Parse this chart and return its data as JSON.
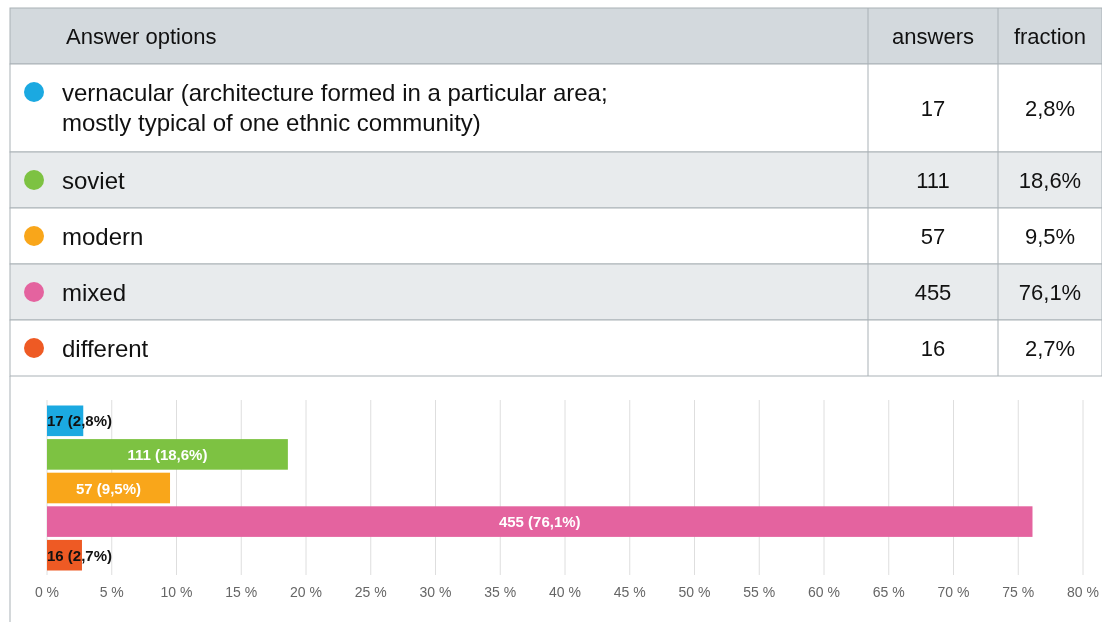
{
  "chart_data": {
    "type": "bar",
    "orientation": "horizontal",
    "categories": [
      null,
      null,
      null,
      null,
      null
    ],
    "values": [
      2.8,
      18.6,
      9.5,
      76.1,
      2.7
    ],
    "colors": [
      "#1ba9e1",
      "#7dc242",
      "#f9a61a",
      "#e4639f",
      "#ee5a24"
    ],
    "value_labels": [
      "17 (2,8%)",
      "111  (18,6%)",
      "57  (9,5%)",
      "455  (76,1%)",
      "16 (2,7%)"
    ],
    "xlim": [
      0,
      80
    ],
    "xticks": [
      {
        "value": 0,
        "label": "0 %"
      },
      {
        "value": 5,
        "label": "5 %"
      },
      {
        "value": 10,
        "label": "10 %"
      },
      {
        "value": 15,
        "label": "15 %"
      },
      {
        "value": 20,
        "label": "20 %"
      },
      {
        "value": 25,
        "label": "25 %"
      },
      {
        "value": 30,
        "label": "30 %"
      },
      {
        "value": 35,
        "label": "35 %"
      },
      {
        "value": 40,
        "label": "40 %"
      },
      {
        "value": 45,
        "label": "45 %"
      },
      {
        "value": 50,
        "label": "50 %"
      },
      {
        "value": 55,
        "label": "55 %"
      },
      {
        "value": 60,
        "label": "60 %"
      },
      {
        "value": 65,
        "label": "65 %"
      },
      {
        "value": 70,
        "label": "70 %"
      },
      {
        "value": 75,
        "label": "75 %"
      },
      {
        "value": 80,
        "label": "80 %"
      }
    ],
    "grid": "x",
    "tick_labels": "x",
    "annotations": [
      "Answer options",
      "answers",
      "fraction",
      "vernacular (architecture formed in a particular area; mostly typical of one ethnic community)",
      "17",
      "2,8%",
      "soviet",
      "111",
      "18,6%",
      "modern",
      "57",
      "9,5%",
      "mixed",
      "455",
      "76,1%",
      "different",
      "16",
      "2,7%"
    ]
  }
}
